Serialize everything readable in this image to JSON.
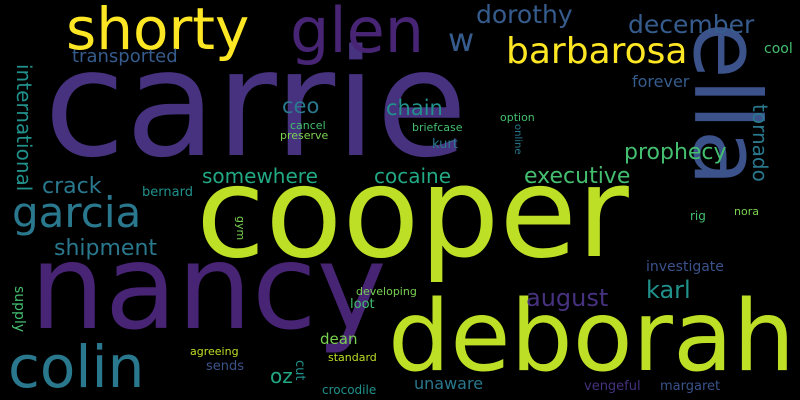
{
  "palette": {
    "background": "#000000",
    "indigo": "#46327e",
    "purple": "#482475",
    "slate_blue": "#3b528b",
    "steel_blue": "#365c8d",
    "teal": "#2a788e",
    "sea_teal": "#21918c",
    "green_teal": "#22a884",
    "green": "#44bf70",
    "lime": "#7ad151",
    "yellow_green": "#bddf26",
    "yellow": "#fde725"
  },
  "words": {
    "carrie": "carrie",
    "cooper": "cooper",
    "nancy": "nancy",
    "deborah": "deborah",
    "ella": "ella",
    "shorty": "shorty",
    "glen": "glen",
    "barbarosa": "barbarosa",
    "colin": "colin",
    "garcia": "garcia",
    "dorothy": "dorothy",
    "december": "december",
    "w": "w",
    "transported": "transported",
    "international": "international",
    "tornado": "tornado",
    "cool": "cool",
    "forever": "forever",
    "chain": "chain",
    "ceo": "ceo",
    "prophecy": "prophecy",
    "executive": "executive",
    "somewhere": "somewhere",
    "cocaine": "cocaine",
    "crack": "crack",
    "bernard": "bernard",
    "shipment": "shipment",
    "investigate": "investigate",
    "august": "august",
    "karl": "karl",
    "supply": "supply",
    "loot": "loot",
    "dean": "dean",
    "oz": "oz",
    "cut": "cut",
    "sends": "sends",
    "crocodile": "crocodile",
    "unaware": "unaware",
    "margaret": "margaret",
    "vengeful": "vengeful",
    "gym": "gym",
    "rig": "rig",
    "nora": "nora",
    "developing": "developing",
    "agreeing": "agreeing",
    "standard": "standard",
    "kurt": "kurt",
    "briefcase": "briefcase",
    "cancel": "cancel",
    "preserve": "preserve",
    "option": "option",
    "online": "online"
  }
}
